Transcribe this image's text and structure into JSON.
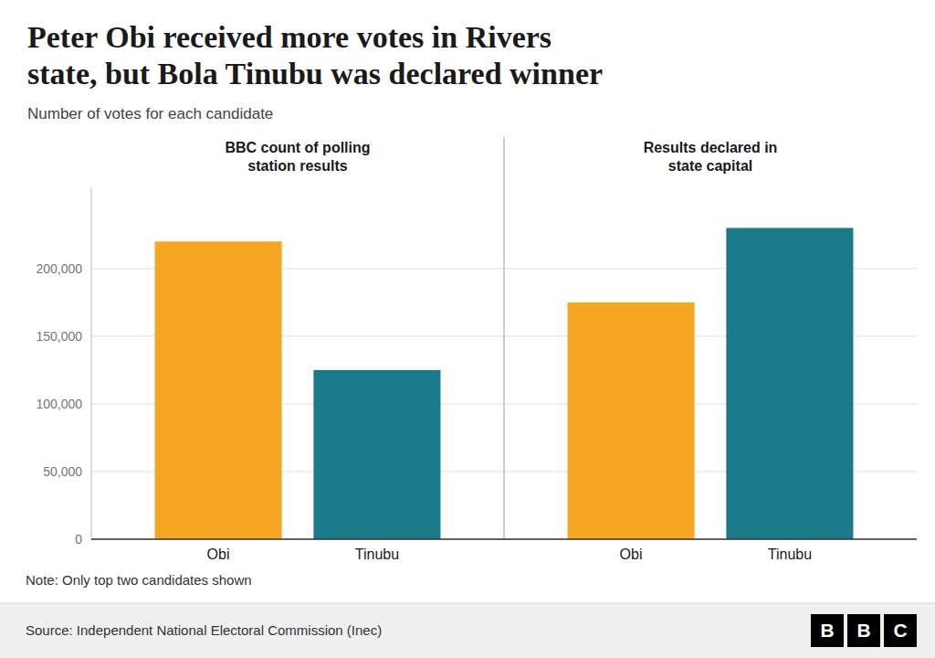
{
  "chart_data": {
    "type": "bar",
    "title": "Peter Obi received more votes in Rivers\nstate, but Bola Tinubu was declared winner",
    "subtitle": "Number of votes for each candidate",
    "groups": [
      "BBC count of polling\nstation results",
      "Results declared in\nstate capital"
    ],
    "categories": [
      "Obi",
      "Tinubu",
      "Obi",
      "Tinubu"
    ],
    "values": [
      220000,
      125000,
      175000,
      230000
    ],
    "colors": [
      "#F5A623",
      "#1B7A8A",
      "#F5A623",
      "#1B7A8A"
    ],
    "ylim": [
      0,
      260000
    ],
    "yticks": [
      0,
      {
        "value": 50000,
        "label": "50,000"
      },
      {
        "value": 100000,
        "label": "100,000"
      },
      {
        "value": 150000,
        "label": "150,000"
      },
      {
        "value": 200000,
        "label": "200,000"
      }
    ],
    "grid": true,
    "note": "Note: Only top two candidates shown",
    "source": "Source: Independent National Electoral Commission (Inec)",
    "logo": "BBC"
  }
}
